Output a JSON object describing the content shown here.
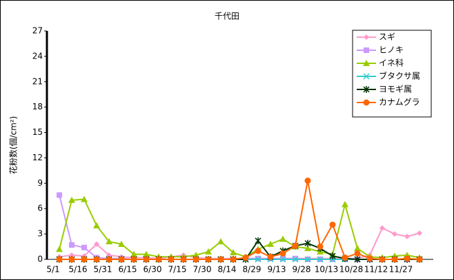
{
  "chart_data": {
    "type": "line",
    "title": "千代田",
    "y_label": "花粉数(個/cm²)",
    "categories": [
      "5/1",
      null,
      "5/16",
      null,
      "5/31",
      null,
      "6/15",
      null,
      "6/30",
      null,
      "7/15",
      null,
      "7/30",
      null,
      "8/14",
      null,
      "8/29",
      null,
      "9/13",
      null,
      "9/28",
      null,
      "10/13",
      null,
      "10/28",
      null,
      "11/12",
      null,
      "11/27",
      null
    ],
    "ylim": [
      0,
      27
    ],
    "yticks": [
      0,
      3,
      6,
      9,
      12,
      15,
      18,
      21,
      24,
      27
    ],
    "grid": false,
    "legend": "top-right",
    "series": [
      {
        "name": "スギ",
        "color": "#ff99cc",
        "marker": "diamond",
        "values": [
          0.3,
          0.5,
          0.4,
          1.8,
          0.5,
          0.3,
          0.2,
          0.2,
          0.1,
          0.3,
          0.5,
          0.2,
          0.1,
          0.1,
          0.1,
          0.1,
          0.1,
          0.1,
          0.1,
          0.1,
          0.1,
          0.1,
          0.1,
          0.1,
          0.1,
          0.5,
          3.7,
          3.0,
          2.7,
          3.1
        ]
      },
      {
        "name": "ヒノキ",
        "color": "#cc99ff",
        "marker": "square",
        "values": [
          7.6,
          1.7,
          1.4,
          0.2,
          0.1,
          0.1,
          0,
          0,
          0,
          0,
          0,
          0,
          0,
          0,
          0,
          0.1,
          0.1,
          0.1,
          0.1,
          0.1,
          0,
          0,
          0,
          0,
          0,
          0,
          0,
          0,
          0,
          0
        ]
      },
      {
        "name": "イネ科",
        "color": "#99cc00",
        "marker": "triangle",
        "values": [
          1.2,
          7.0,
          7.1,
          4.0,
          2.1,
          1.8,
          0.6,
          0.6,
          0.3,
          0.3,
          0.3,
          0.5,
          0.9,
          2.1,
          0.8,
          0.3,
          1.2,
          1.8,
          2.4,
          1.5,
          1.3,
          0.9,
          0.6,
          6.5,
          1.3,
          0.3,
          0.2,
          0.4,
          0.5,
          0.2
        ]
      },
      {
        "name": "ブタクサ属",
        "color": "#33cccc",
        "marker": "x",
        "values": [
          0,
          0,
          0,
          0,
          0,
          0,
          0,
          0,
          0,
          0,
          0,
          0,
          0,
          0,
          0,
          0,
          0,
          0,
          0,
          0,
          0,
          0,
          0,
          0,
          0,
          0,
          0,
          0,
          0,
          0
        ]
      },
      {
        "name": "ヨモギ属",
        "color": "#003300",
        "marker": "star",
        "values": [
          0,
          0,
          0,
          0,
          0,
          0,
          0,
          0,
          0,
          0,
          0,
          0,
          0,
          0,
          0,
          0,
          2.2,
          0.3,
          1.0,
          1.6,
          1.9,
          1.3,
          0.4,
          0.1,
          0,
          0,
          0,
          0,
          0,
          0
        ]
      },
      {
        "name": "カナムグラ",
        "color": "#ff6600",
        "marker": "circle",
        "values": [
          0,
          0,
          0,
          0,
          0,
          0,
          0,
          0,
          0,
          0,
          0,
          0,
          0,
          0,
          0,
          0.2,
          1.0,
          0.3,
          0.7,
          1.6,
          9.3,
          1.5,
          4.1,
          0.2,
          0.7,
          0.1,
          0,
          0,
          0.1,
          0
        ]
      }
    ]
  }
}
